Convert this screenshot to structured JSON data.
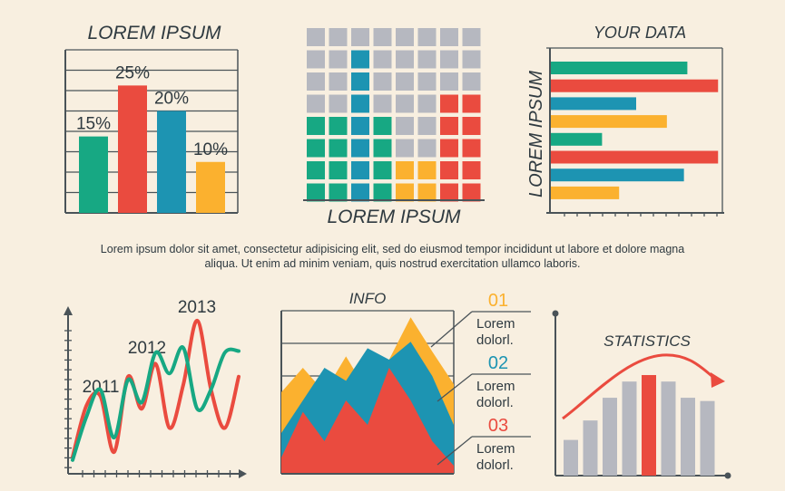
{
  "colors": {
    "green": "#17a883",
    "red": "#ea4b3f",
    "blue": "#1d94b2",
    "yellow": "#fbb12f",
    "gray": "#b6b8c0",
    "line": "#4a5358"
  },
  "paragraph": "Lorem ipsum dolor sit amet, consectetur adipisicing elit, sed do eiusmod tempor incididunt ut labore et dolore magna aliqua. Ut enim ad minim veniam, quis nostrud exercitation ullamco laboris.",
  "chart_data": [
    {
      "type": "bar",
      "title": "LOREM IPSUM",
      "categories": [
        "",
        "",
        "",
        ""
      ],
      "values": [
        15,
        25,
        20,
        10
      ],
      "value_labels": [
        "15%",
        "25%",
        "20%",
        "10%"
      ],
      "bar_colors": [
        "green",
        "red",
        "blue",
        "yellow"
      ],
      "ylim": [
        0,
        32
      ],
      "grid": true
    },
    {
      "type": "heatmap",
      "title": "LOREM IPSUM",
      "rows": 8,
      "cols": 8,
      "columns": [
        [
          "gray",
          "gray",
          "gray",
          "gray",
          "green",
          "green",
          "green",
          "green"
        ],
        [
          "gray",
          "gray",
          "gray",
          "gray",
          "green",
          "green",
          "green",
          "green"
        ],
        [
          "gray",
          "blue",
          "blue",
          "blue",
          "blue",
          "blue",
          "blue",
          "blue"
        ],
        [
          "gray",
          "gray",
          "gray",
          "gray",
          "green",
          "green",
          "green",
          "green"
        ],
        [
          "gray",
          "gray",
          "gray",
          "gray",
          "gray",
          "gray",
          "yellow",
          "yellow"
        ],
        [
          "gray",
          "gray",
          "gray",
          "gray",
          "gray",
          "gray",
          "yellow",
          "yellow"
        ],
        [
          "gray",
          "gray",
          "gray",
          "red",
          "red",
          "red",
          "red",
          "red"
        ],
        [
          "gray",
          "gray",
          "gray",
          "red",
          "red",
          "red",
          "red",
          "red"
        ]
      ]
    },
    {
      "type": "bar",
      "orientation": "horizontal",
      "title": "YOUR DATA",
      "ylabel": "LOREM IPSUM",
      "values": [
        80,
        98,
        50,
        68,
        30,
        98,
        78,
        40
      ],
      "bar_colors": [
        "green",
        "red",
        "blue",
        "yellow",
        "green",
        "red",
        "blue",
        "yellow"
      ],
      "xlim": [
        0,
        100
      ]
    },
    {
      "type": "line",
      "x": [
        0,
        1,
        2,
        3,
        4,
        5,
        6,
        7,
        8,
        9,
        10,
        11,
        12
      ],
      "series": [
        {
          "color": "red",
          "values": [
            10,
            42,
            48,
            13,
            60,
            40,
            68,
            28,
            55,
            95,
            52,
            28,
            60
          ]
        },
        {
          "color": "green",
          "values": [
            8,
            35,
            52,
            22,
            58,
            44,
            75,
            62,
            78,
            40,
            52,
            75,
            76
          ]
        }
      ],
      "annotations": [
        "2011",
        "2012",
        "2013"
      ],
      "ylim": [
        0,
        100
      ]
    },
    {
      "type": "area",
      "title": "INFO",
      "x": [
        0,
        1,
        2,
        3,
        4,
        5,
        6,
        7,
        8
      ],
      "series": [
        {
          "color": "yellow",
          "values": [
            50,
            65,
            50,
            72,
            50,
            70,
            96,
            75,
            55
          ]
        },
        {
          "color": "blue",
          "values": [
            25,
            45,
            65,
            57,
            77,
            70,
            81,
            60,
            30
          ]
        },
        {
          "color": "red",
          "values": [
            10,
            38,
            20,
            45,
            30,
            65,
            45,
            20,
            5
          ]
        }
      ],
      "legend": [
        {
          "number": "01",
          "text": [
            "Lorem",
            "dolorl."
          ],
          "color": "yellow"
        },
        {
          "number": "02",
          "text": [
            "Lorem",
            "dolorl."
          ],
          "color": "blue"
        },
        {
          "number": "03",
          "text": [
            "Lorem",
            "dolorl."
          ],
          "color": "red"
        }
      ],
      "ylim": [
        0,
        100
      ]
    },
    {
      "type": "bar",
      "title": "STATISTICS",
      "values": [
        22,
        34,
        48,
        58,
        62,
        58,
        48,
        46
      ],
      "highlight_index": 4,
      "trend_line": true,
      "ylim": [
        0,
        100
      ]
    }
  ]
}
